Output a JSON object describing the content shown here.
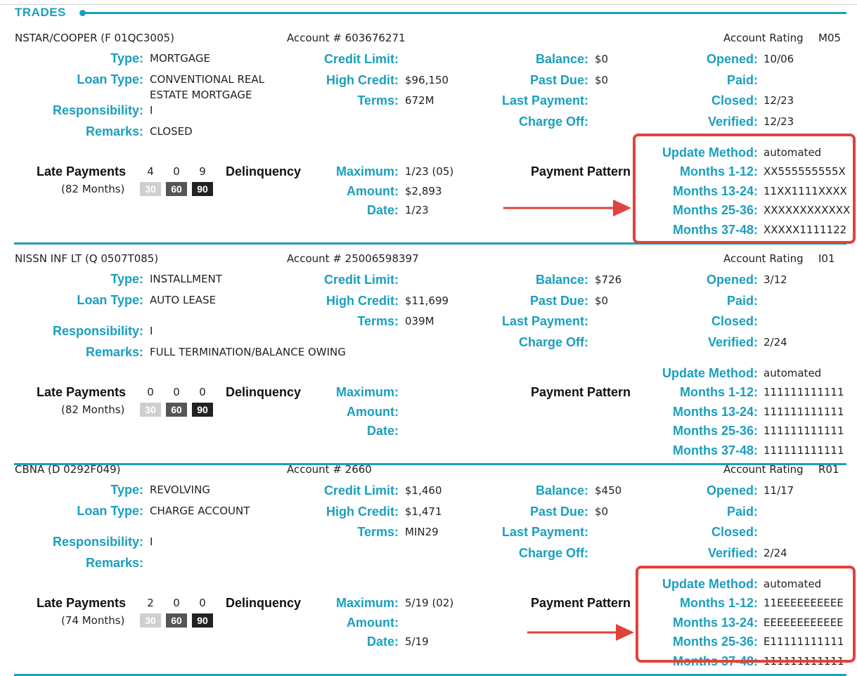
{
  "section": {
    "title": "TRADES"
  },
  "labels": {
    "type": "Type:",
    "loan_type": "Loan Type:",
    "responsibility": "Responsibility:",
    "remarks": "Remarks:",
    "credit_limit": "Credit Limit:",
    "high_credit": "High Credit:",
    "terms": "Terms:",
    "balance": "Balance:",
    "past_due": "Past Due:",
    "last_payment": "Last Payment:",
    "charge_off": "Charge Off:",
    "opened": "Opened:",
    "paid": "Paid:",
    "closed": "Closed:",
    "verified": "Verified:",
    "update_method": "Update Method:",
    "m1": "Months 1-12:",
    "m2": "Months 13-24:",
    "m3": "Months 25-36:",
    "m4": "Months 37-48:",
    "late_payments": "Late Payments",
    "delinquency": "Delinquency",
    "maximum": "Maximum:",
    "amount": "Amount:",
    "date": "Date:",
    "payment_pattern": "Payment Pattern",
    "account_rating": "Account Rating",
    "b30": "30",
    "b60": "60",
    "b90": "90"
  },
  "trades": [
    {
      "creditor": "NSTAR/COOPER (F 01QC3005)",
      "account": "Account # 603676271",
      "rating": "M05",
      "type": "MORTGAGE",
      "loan_type_line1": "CONVENTIONAL REAL",
      "loan_type_line2": "ESTATE MORTGAGE",
      "responsibility": "I",
      "remarks": "CLOSED",
      "credit_limit": "",
      "high_credit": "$96,150",
      "terms": "672M",
      "balance": "$0",
      "past_due": "$0",
      "last_payment": "",
      "charge_off": "",
      "opened": "10/06",
      "paid": "",
      "closed": "12/23",
      "verified": "12/23",
      "late_30": "4",
      "late_60": "0",
      "late_90": "9",
      "late_months": "(82 Months)",
      "del_max": "1/23 (05)",
      "del_amount": "$2,893",
      "del_date": "1/23",
      "update_method": "automated",
      "m1": "XX555555555X",
      "m2": "11XX1111XXXX",
      "m3": "XXXXXXXXXXXX",
      "m4": "XXXXX1111122"
    },
    {
      "creditor": "NISSN INF LT (Q 0507T085)",
      "account": "Account # 25006598397",
      "rating": "I01",
      "type": "INSTALLMENT",
      "loan_type_line1": "AUTO LEASE",
      "loan_type_line2": "",
      "responsibility": "I",
      "remarks": "FULL TERMINATION/BALANCE OWING",
      "credit_limit": "",
      "high_credit": "$11,699",
      "terms": "039M",
      "balance": "$726",
      "past_due": "$0",
      "last_payment": "",
      "charge_off": "",
      "opened": "3/12",
      "paid": "",
      "closed": "",
      "verified": "2/24",
      "late_30": "0",
      "late_60": "0",
      "late_90": "0",
      "late_months": "(82 Months)",
      "del_max": "",
      "del_amount": "",
      "del_date": "",
      "update_method": "automated",
      "m1": "111111111111",
      "m2": "111111111111",
      "m3": "111111111111",
      "m4": "111111111111"
    },
    {
      "creditor": "CBNA (D 0292F049)",
      "account": "Account # 2660",
      "rating": "R01",
      "type": "REVOLVING",
      "loan_type_line1": "CHARGE ACCOUNT",
      "loan_type_line2": "",
      "responsibility": "I",
      "remarks": "",
      "credit_limit": "$1,460",
      "high_credit": "$1,471",
      "terms": "MIN29",
      "balance": "$450",
      "past_due": "$0",
      "last_payment": "",
      "charge_off": "",
      "opened": "11/17",
      "paid": "",
      "closed": "",
      "verified": "2/24",
      "late_30": "2",
      "late_60": "0",
      "late_90": "0",
      "late_months": "(74 Months)",
      "del_max": "5/19 (02)",
      "del_amount": "",
      "del_date": "5/19",
      "update_method": "automated",
      "m1": "11EEEEEEEEEE",
      "m2": "EEEEEEEEEEEE",
      "m3": "E11111111111",
      "m4": "111111111111"
    }
  ],
  "colors": {
    "accent": "#1a9fbf",
    "highlight": "#e0433a"
  }
}
